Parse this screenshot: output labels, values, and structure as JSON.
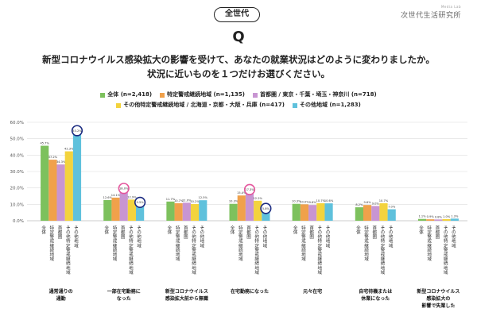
{
  "header": {
    "badge": "全世代",
    "logo_small": "Media Lab",
    "logo": "次世代生活研究所",
    "q_mark": "Q",
    "question_line1": "新型コロナウイルス感染拡大の影響を受けて、あなたの就業状況はどのように変わりましたか。",
    "question_line2": "状況に近いものを１つだけお選びください。"
  },
  "chart_data": {
    "type": "bar",
    "series": [
      {
        "name": "全体 (n=2,418)",
        "color": "#7dc15d",
        "values": [
          45.7,
          12.6,
          11.7,
          10.3,
          10.3,
          8.2,
          1.1
        ]
      },
      {
        "name": "特定警戒継続地域 (n=1,135)",
        "color": "#f0a14b",
        "values": [
          37.2,
          14.1,
          10.7,
          15.4,
          10.0,
          9.6,
          0.9
        ]
      },
      {
        "name": "首都圏 / 東京・千葉・埼玉・神奈川 (n=718)",
        "color": "#c895d2",
        "values": [
          34.3,
          18.0,
          11.0,
          17.3,
          9.6,
          9.0,
          0.8
        ]
      },
      {
        "name": "その他特定警戒継続地域 / 北海道・京都・大阪・兵庫 (n=417)",
        "color": "#f3d33d",
        "values": [
          42.3,
          12.9,
          10.2,
          12.2,
          10.7,
          10.7,
          1.0
        ]
      },
      {
        "name": "その他地域 (n=1,283)",
        "color": "#5fc1dc",
        "values": [
          53.2,
          9.5,
          12.5,
          5.8,
          10.6,
          7.0,
          1.3
        ]
      }
    ],
    "value_labels": [
      [
        "45.7%",
        "12.6%",
        "11.7%",
        "10.3%",
        "10.3%",
        "8.2%",
        "1.1%"
      ],
      [
        "37.2%",
        "14.1%",
        "10.7%",
        "15.4%",
        "10.0%",
        "9.6%",
        "0.9%"
      ],
      [
        "34.3%",
        "18.0%",
        "11.0%",
        "17.3%",
        "9.6%",
        "9.0%",
        "0.8%"
      ],
      [
        "42.3%",
        "12.9%",
        "10.2%",
        "12.2%",
        "10.7%",
        "10.7%",
        "1.0%"
      ],
      [
        "53.2%",
        "9.5%",
        "12.5%",
        "5.8%",
        "10.6%",
        "7.0%",
        "1.3%"
      ]
    ],
    "highlight_circles": [
      {
        "series": 4,
        "category": 0,
        "color": "#1a2a80"
      },
      {
        "series": 2,
        "category": 1,
        "color": "#e4549c"
      },
      {
        "series": 4,
        "category": 1,
        "color": "#1a2a80"
      },
      {
        "series": 2,
        "category": 3,
        "color": "#e4549c"
      },
      {
        "series": 4,
        "category": 3,
        "color": "#1a2a80"
      }
    ],
    "segment_labels": [
      "全体",
      "特定警戒継続地域",
      "首都圏",
      "その他特定警戒継続地域",
      "その他地域"
    ],
    "categories": [
      [
        "通常通りの",
        "通勤"
      ],
      [
        "一部在宅勤務に",
        "なった"
      ],
      [
        "新型コロナウイルス",
        "感染拡大前から無職"
      ],
      [
        "在宅勤務になった"
      ],
      [
        "元々在宅"
      ],
      [
        "自宅待機または",
        "休業になった"
      ],
      [
        "新型コロナウイルス",
        "感染拡大の",
        "影響で失業した"
      ]
    ],
    "yticks": [
      "60.0%",
      "50.0%",
      "40.0%",
      "30.0%",
      "20.0%",
      "10.0%",
      "0.0%"
    ],
    "ylim": [
      0,
      60
    ],
    "grid": true,
    "legend_position": "top"
  }
}
